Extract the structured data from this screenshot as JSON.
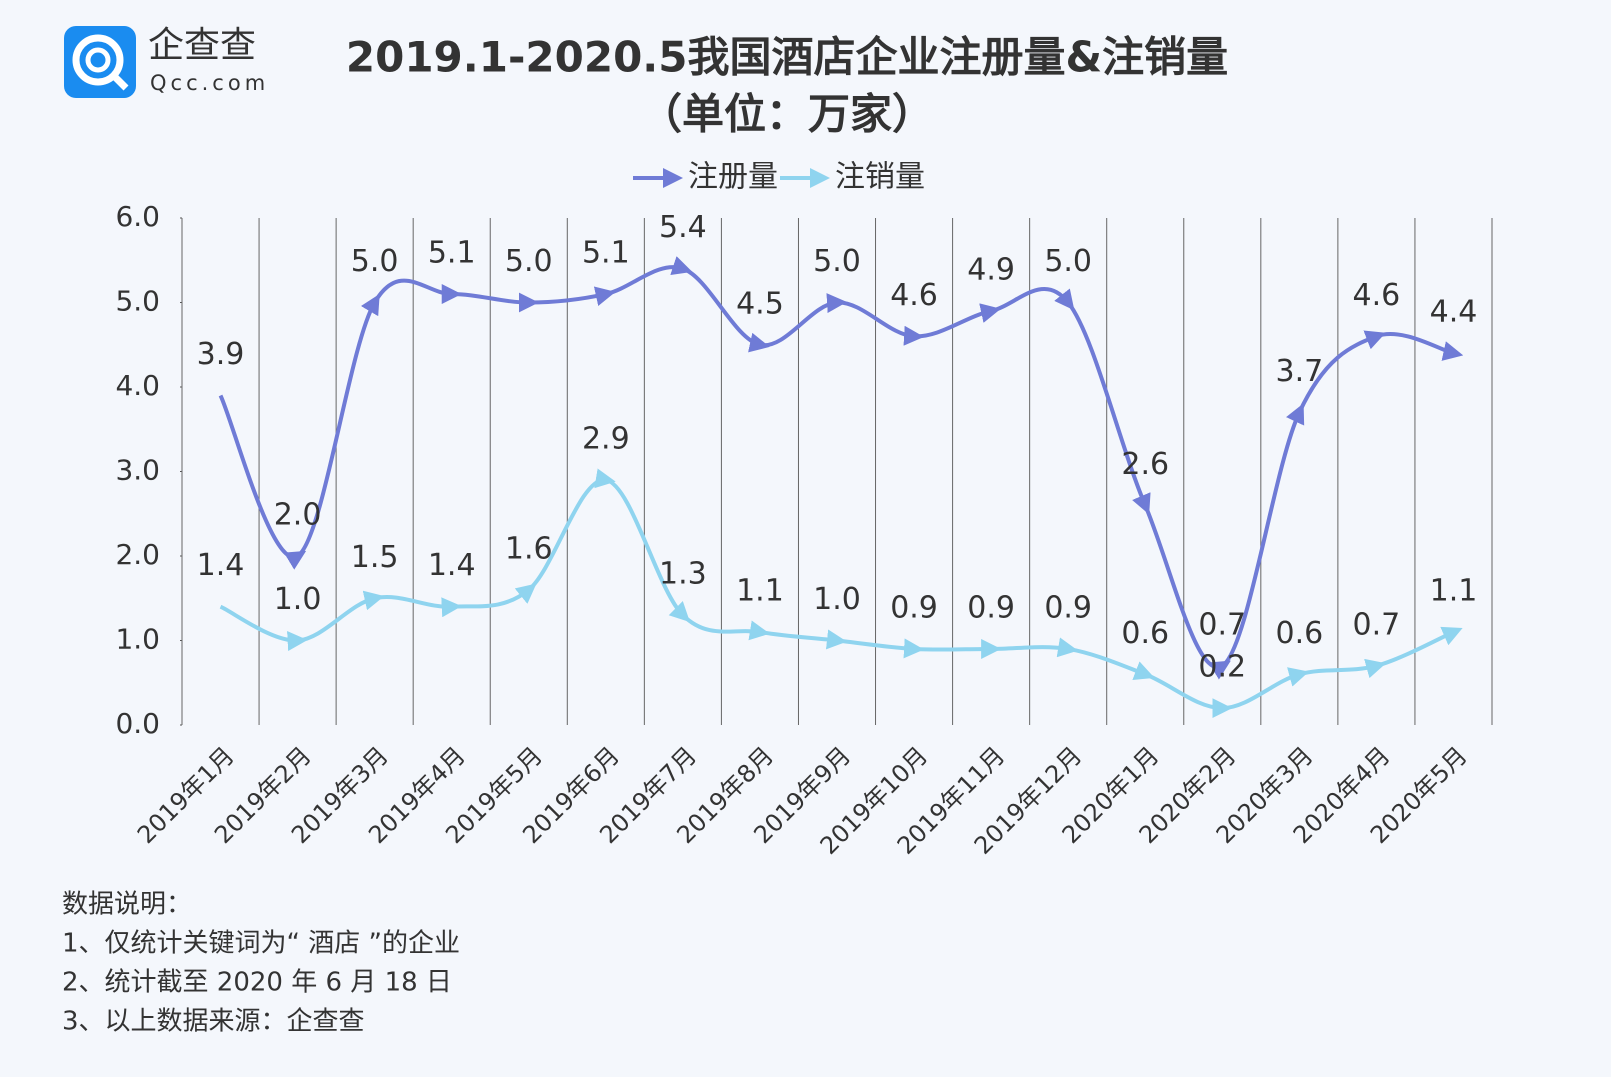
{
  "logo": {
    "name": "企查查",
    "domain": "Qcc.com"
  },
  "chart_data": {
    "type": "line",
    "title": "2019.1-2020.5我国酒店企业注册量&注销量",
    "subtitle": "（单位：万家）",
    "categories": [
      "2019年1月",
      "2019年2月",
      "2019年3月",
      "2019年4月",
      "2019年5月",
      "2019年6月",
      "2019年7月",
      "2019年8月",
      "2019年9月",
      "2019年10月",
      "2019年11月",
      "2019年12月",
      "2020年1月",
      "2020年2月",
      "2020年3月",
      "2020年4月",
      "2020年5月"
    ],
    "series": [
      {
        "name": "注册量",
        "color": "#6f7bd6",
        "values": [
          3.9,
          2.0,
          5.0,
          5.1,
          5.0,
          5.1,
          5.4,
          4.5,
          5.0,
          4.6,
          4.9,
          5.0,
          2.6,
          0.7,
          3.7,
          4.6,
          4.4
        ],
        "value_labels": [
          "3.9",
          "2.0",
          "5.0",
          "5.1",
          "5.0",
          "5.1",
          "5.4",
          "4.5",
          "5.0",
          "4.6",
          "4.9",
          "5.0",
          "2.6",
          "0.7",
          "3.7",
          "4.6",
          "4.4"
        ]
      },
      {
        "name": "注销量",
        "color": "#8fd4ef",
        "values": [
          1.4,
          1.0,
          1.5,
          1.4,
          1.6,
          2.9,
          1.3,
          1.1,
          1.0,
          0.9,
          0.9,
          0.9,
          0.6,
          0.2,
          0.6,
          0.7,
          1.1
        ],
        "value_labels": [
          "1.4",
          "1.0",
          "1.5",
          "1.4",
          "1.6",
          "2.9",
          "1.3",
          "1.1",
          "1.0",
          "0.9",
          "0.9",
          "0.9",
          "0.6",
          "0.2",
          "0.6",
          "0.7",
          "1.1"
        ]
      }
    ],
    "ylim": [
      0,
      6
    ],
    "yticks": [
      {
        "value": 0,
        "label": "0.0"
      },
      {
        "value": 1,
        "label": "1.0"
      },
      {
        "value": 2,
        "label": "2.0"
      },
      {
        "value": 3,
        "label": "3.0"
      },
      {
        "value": 4,
        "label": "4.0"
      },
      {
        "value": 5,
        "label": "5.0"
      },
      {
        "value": 6,
        "label": "6.0"
      }
    ],
    "grid": true
  },
  "notes": [
    "数据说明：",
    "1、仅统计关键词为“ 酒店 ”的企业",
    "2、统计截至 2020 年 6 月 18 日",
    "3、以上数据来源：企查查"
  ]
}
